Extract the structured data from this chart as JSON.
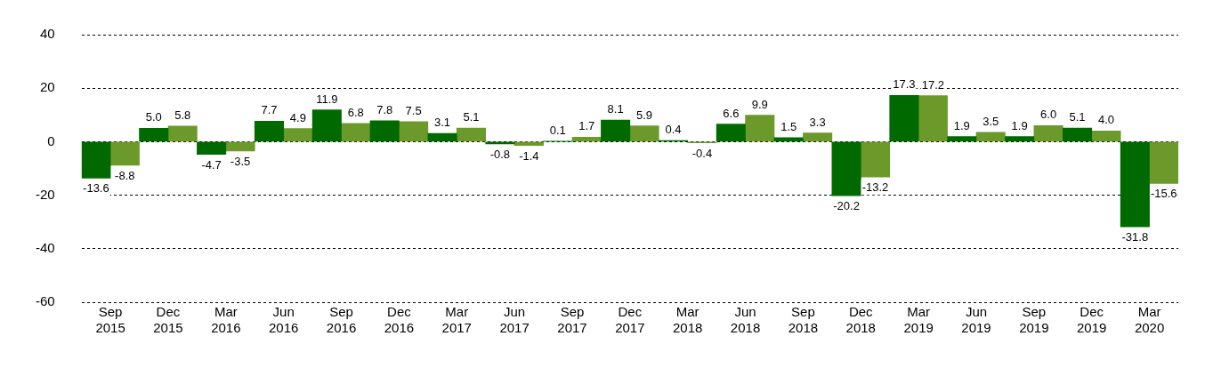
{
  "chart_data": {
    "type": "bar",
    "categories": [
      "Sep 2015",
      "Dec 2015",
      "Mar 2016",
      "Jun 2016",
      "Sep 2016",
      "Dec 2016",
      "Mar 2017",
      "Jun 2017",
      "Sep 2017",
      "Dec 2017",
      "Mar 2018",
      "Jun 2018",
      "Sep 2018",
      "Dec 2018",
      "Mar 2019",
      "Jun 2019",
      "Sep 2019",
      "Dec 2019",
      "Mar 2020"
    ],
    "series": [
      {
        "color": "#006a00",
        "values": [
          -13.6,
          5.0,
          -4.7,
          7.7,
          11.9,
          7.8,
          3.1,
          -0.8,
          0.1,
          8.1,
          0.4,
          6.6,
          1.5,
          -20.2,
          17.3,
          1.9,
          1.9,
          5.1,
          -31.8
        ],
        "value_labels": [
          "-13.6",
          "5.0",
          "-4.7",
          "7.7",
          "11.9",
          "7.8",
          "3.1",
          "-0.8",
          "0.1",
          "8.1",
          "0.4",
          "6.6",
          "1.5",
          "-20.2",
          "17.3",
          "1.9",
          "1.9",
          "5.1",
          "-31.8"
        ]
      },
      {
        "color": "#6b9a2a",
        "values": [
          -8.8,
          5.8,
          -3.5,
          4.9,
          6.8,
          7.5,
          5.1,
          -1.4,
          1.7,
          5.9,
          -0.4,
          9.9,
          3.3,
          -13.2,
          17.2,
          3.5,
          6.0,
          4.0,
          -15.6
        ],
        "value_labels": [
          "-8.8",
          "5.8",
          "-3.5",
          "4.9",
          "6.8",
          "7.5",
          "5.1",
          "-1.4",
          "1.7",
          "5.9",
          "-0.4",
          "9.9",
          "3.3",
          "-13.2",
          "17.2",
          "3.5",
          "6.0",
          "4.0",
          "-15.6"
        ]
      }
    ],
    "ylim": [
      -60,
      40
    ],
    "yticks": [
      -60,
      -40,
      -20,
      0,
      20,
      40
    ],
    "grid": "y"
  }
}
